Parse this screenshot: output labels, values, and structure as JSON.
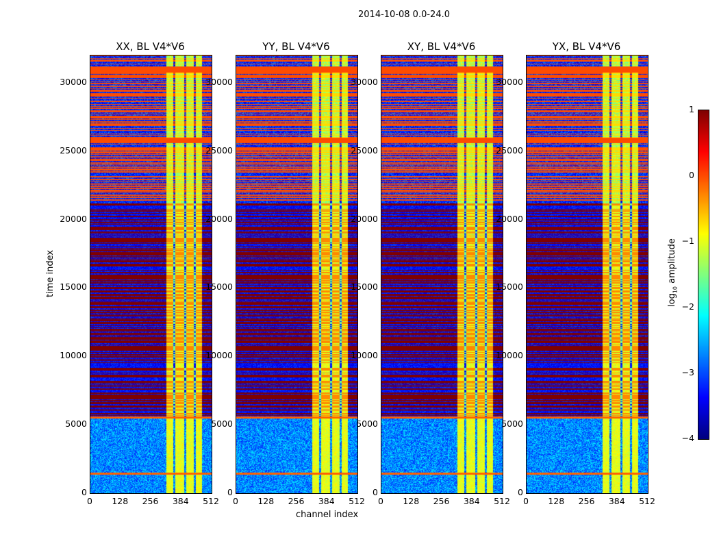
{
  "chart_data": {
    "type": "heatmap",
    "title": "2014-10-08 0.0-24.0",
    "xlabel": "channel index",
    "ylabel": "time index",
    "xlim": [
      0,
      512
    ],
    "ylim": [
      0,
      32000
    ],
    "xticks": [
      "0",
      "128",
      "256",
      "384",
      "512"
    ],
    "yticks": [
      "0",
      "5000",
      "10000",
      "15000",
      "20000",
      "25000",
      "30000"
    ],
    "panels": [
      {
        "title": "XX, BL V4*V6",
        "seed": 1
      },
      {
        "title": "YY, BL V4*V6",
        "seed": 2
      },
      {
        "title": "XY, BL V4*V6",
        "seed": 3
      },
      {
        "title": "YX, BL V4*V6",
        "seed": 4
      }
    ],
    "colorbar": {
      "label_prefix": "log",
      "label_sub": "10",
      "label_suffix": " amplitude",
      "colormap": "jet",
      "range": [
        -4,
        1
      ],
      "ticks": [
        "1",
        "0",
        "−1",
        "−2",
        "−3",
        "−4"
      ]
    },
    "regions": {
      "quiet_time": [
        0,
        5500
      ],
      "flag_line_times": [
        1450,
        5550
      ],
      "alternating_dark_red_time": [
        5650,
        21200
      ],
      "alternating_orange_time": [
        21200,
        32000
      ],
      "solid_orange_bands": [
        [
          25600,
          26000
        ],
        [
          30750,
          31200
        ]
      ],
      "bright_channels": [
        320,
        470
      ],
      "background_log_amplitude": -2.7,
      "bright_channel_log_amplitude": -1.0,
      "dark_red_log_amplitude": 1.0,
      "orange_log_amplitude": 0.0
    }
  }
}
